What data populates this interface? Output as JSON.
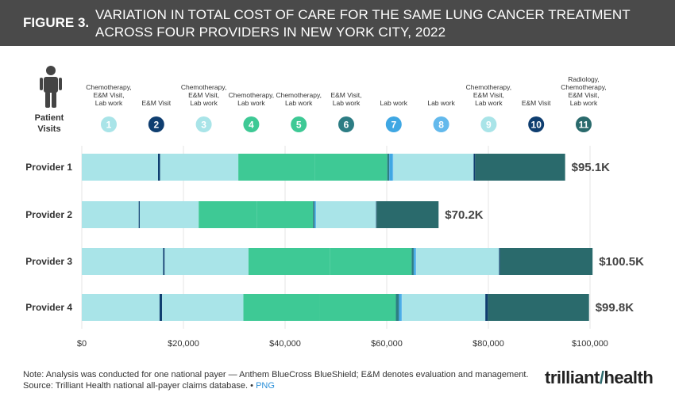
{
  "header": {
    "figure_label": "FIGURE 3.",
    "title_line1": "VARIATION IN TOTAL COST OF CARE FOR THE SAME LUNG CANCER TREATMENT",
    "title_line2": "ACROSS FOUR PROVIDERS IN NEW YORK CITY, 2022"
  },
  "legend": {
    "patient_label_1": "Patient",
    "patient_label_2": "Visits",
    "visits": [
      {
        "num": "1",
        "lines": [
          "Chemotherapy,",
          "E&M Visit,",
          "Lab work"
        ],
        "color": "#a9e4e8"
      },
      {
        "num": "2",
        "lines": [
          "E&M Visit"
        ],
        "color": "#0f3e70"
      },
      {
        "num": "3",
        "lines": [
          "Chemotherapy,",
          "E&M Visit,",
          "Lab work"
        ],
        "color": "#a9e4e8"
      },
      {
        "num": "4",
        "lines": [
          "Chemotherapy,",
          "Lab work"
        ],
        "color": "#3ec995"
      },
      {
        "num": "5",
        "lines": [
          "Chemotherapy,",
          "Lab work"
        ],
        "color": "#3ec995"
      },
      {
        "num": "6",
        "lines": [
          "E&M Visit,",
          "Lab work"
        ],
        "color": "#2d7d84"
      },
      {
        "num": "7",
        "lines": [
          "Lab work"
        ],
        "color": "#3fa7e3"
      },
      {
        "num": "8",
        "lines": [
          "Lab work"
        ],
        "color": "#63b9ec"
      },
      {
        "num": "9",
        "lines": [
          "Chemotherapy,",
          "E&M Visit,",
          "Lab work"
        ],
        "color": "#a9e4e8"
      },
      {
        "num": "10",
        "lines": [
          "E&M Visit"
        ],
        "color": "#0f3e70"
      },
      {
        "num": "11",
        "lines": [
          "Radiology,",
          "Chemotherapy,",
          "E&M Visit,",
          "Lab work"
        ],
        "color": "#2a6a6c"
      }
    ]
  },
  "chart_data": {
    "type": "bar",
    "orientation": "horizontal",
    "stacked": true,
    "title": "Variation in Total Cost of Care for the Same Lung Cancer Treatment Across Four Providers in New York City, 2022",
    "xlabel": "",
    "ylabel": "",
    "xlim": [
      0,
      100000
    ],
    "xticks": [
      0,
      20000,
      40000,
      60000,
      80000,
      100000
    ],
    "xtick_labels": [
      "$0",
      "$20,000",
      "$40,000",
      "$60,000",
      "$80,000",
      "$100,000"
    ],
    "categories": [
      "Provider 1",
      "Provider 2",
      "Provider 3",
      "Provider 4"
    ],
    "series": [
      {
        "name": "Visit 1",
        "color": "#a9e4e8",
        "values": [
          15000,
          11200,
          16000,
          15300
        ]
      },
      {
        "name": "Visit 2",
        "color": "#0f3e70",
        "values": [
          400,
          200,
          300,
          500
        ]
      },
      {
        "name": "Visit 3",
        "color": "#a9e4e8",
        "values": [
          15400,
          11600,
          16500,
          16000
        ]
      },
      {
        "name": "Visit 4",
        "color": "#3ec995",
        "values": [
          15000,
          11500,
          16000,
          15000
        ]
      },
      {
        "name": "Visit 5",
        "color": "#3ec995",
        "values": [
          14300,
          11000,
          16100,
          15000
        ]
      },
      {
        "name": "Visit 6",
        "color": "#2d7d84",
        "values": [
          400,
          300,
          400,
          600
        ]
      },
      {
        "name": "Visit 7",
        "color": "#3fa7e3",
        "values": [
          600,
          200,
          300,
          400
        ]
      },
      {
        "name": "Visit 8",
        "color": "#63b9ec",
        "values": [
          200,
          100,
          200,
          200
        ]
      },
      {
        "name": "Visit 9",
        "color": "#a9e4e8",
        "values": [
          15800,
          11800,
          16300,
          16400
        ]
      },
      {
        "name": "Visit 10",
        "color": "#0f3e70",
        "values": [
          300,
          100,
          200,
          500
        ]
      },
      {
        "name": "Visit 11",
        "color": "#2a6a6c",
        "values": [
          17700,
          12200,
          18200,
          19900
        ]
      }
    ],
    "totals": [
      95100,
      70200,
      100500,
      99800
    ],
    "total_labels": [
      "$95.1K",
      "$70.2K",
      "$100.5K",
      "$99.8K"
    ]
  },
  "footer": {
    "note": "Note: Analysis was conducted for one national payer — Anthem BlueCross BlueShield; E&M denotes evaluation and management.",
    "source": "Source: Trilliant Health national all-payer claims database.",
    "separator": "•",
    "png_link": "PNG"
  },
  "logo": {
    "part1": "trilliant",
    "slash": "/",
    "part2": "health"
  }
}
